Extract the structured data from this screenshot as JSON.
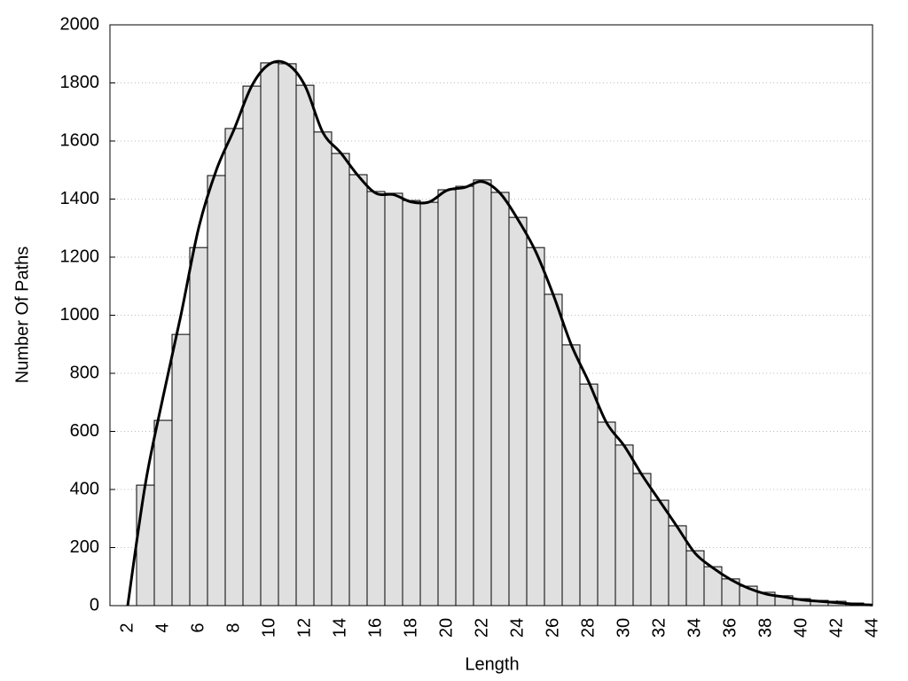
{
  "chart_data": {
    "type": "histogram",
    "x_label": "Length",
    "y_label": "Number Of Paths",
    "bins": [
      2.5,
      3.5,
      4.5,
      5.5,
      6.5,
      7.5,
      8.5,
      9.5,
      10.5,
      11.5,
      12.5,
      13.5,
      14.5,
      15.5,
      16.5,
      17.5,
      18.5,
      19.5,
      20.5,
      21.5,
      22.5,
      23.5,
      24.5,
      25.5,
      26.5,
      27.5,
      28.5,
      29.5,
      30.5,
      31.5,
      32.5,
      33.5,
      34.5,
      35.5,
      36.5,
      37.5,
      38.5,
      39.5,
      40.5,
      41.5,
      42.5,
      43.5
    ],
    "values": [
      415,
      638,
      934,
      1233,
      1481,
      1643,
      1789,
      1869,
      1866,
      1792,
      1631,
      1557,
      1484,
      1426,
      1420,
      1395,
      1389,
      1432,
      1444,
      1466,
      1423,
      1337,
      1233,
      1072,
      898,
      763,
      632,
      553,
      455,
      363,
      275,
      189,
      134,
      92,
      67,
      46,
      34,
      24,
      18,
      15,
      9
    ],
    "color": "#e0e0e0",
    "curve": {
      "color": "#000000",
      "x": [
        2,
        3,
        4,
        5,
        6,
        7,
        8,
        9,
        10,
        11,
        12,
        13,
        14,
        15,
        16,
        17,
        18,
        19,
        20,
        21,
        22,
        23,
        24,
        25,
        26,
        27,
        28,
        29,
        30,
        31,
        32,
        33,
        34,
        35,
        36,
        37,
        38,
        39,
        40,
        41,
        42,
        43,
        44
      ],
      "values": [
        0,
        420,
        720,
        1000,
        1300,
        1500,
        1640,
        1790,
        1865,
        1865,
        1790,
        1630,
        1560,
        1480,
        1420,
        1415,
        1390,
        1390,
        1430,
        1440,
        1460,
        1420,
        1330,
        1220,
        1070,
        900,
        770,
        630,
        550,
        450,
        360,
        270,
        180,
        130,
        90,
        60,
        40,
        30,
        20,
        15,
        10,
        5,
        2
      ]
    },
    "xlim": [
      1,
      44
    ],
    "ylim": [
      0,
      2000
    ],
    "xticks": [
      2,
      4,
      6,
      8,
      10,
      12,
      14,
      16,
      18,
      20,
      22,
      24,
      26,
      28,
      30,
      32,
      34,
      36,
      38,
      40,
      42,
      44
    ],
    "yticks": [
      0,
      200,
      400,
      600,
      800,
      1000,
      1200,
      1400,
      1600,
      1800,
      2000
    ],
    "grid": true
  }
}
